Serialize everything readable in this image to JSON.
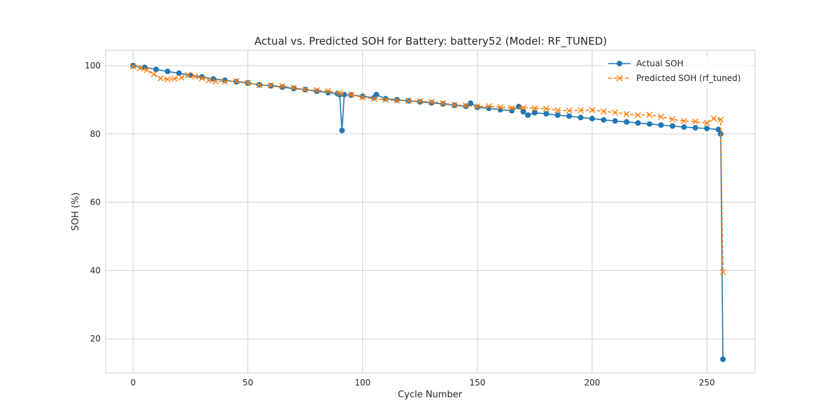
{
  "chart_data": {
    "type": "line",
    "title": "Actual vs. Predicted SOH for Battery: battery52 (Model: RF_TUNED)",
    "xlabel": "Cycle Number",
    "ylabel": "SOH (%)",
    "xlim": [
      -12,
      271
    ],
    "ylim": [
      10,
      104.5
    ],
    "xticks": [
      0,
      50,
      100,
      150,
      200,
      250
    ],
    "yticks": [
      20,
      40,
      60,
      80,
      100
    ],
    "grid": true,
    "legend_position": "top-right",
    "series": [
      {
        "name": "Actual SOH",
        "color": "#1f77b4",
        "marker": "circle",
        "linestyle": "solid",
        "x": [
          0,
          5,
          10,
          15,
          20,
          25,
          30,
          35,
          40,
          45,
          50,
          55,
          60,
          65,
          70,
          75,
          80,
          85,
          89,
          90,
          91,
          92,
          95,
          100,
          105,
          106,
          110,
          115,
          120,
          125,
          130,
          135,
          140,
          145,
          147,
          150,
          155,
          160,
          165,
          168,
          170,
          172,
          175,
          180,
          185,
          190,
          195,
          200,
          205,
          210,
          215,
          220,
          225,
          230,
          235,
          240,
          245,
          250,
          255,
          256,
          257
        ],
        "y": [
          100,
          99.5,
          98.9,
          98.3,
          97.8,
          97.2,
          96.7,
          96.1,
          95.7,
          95.3,
          94.9,
          94.4,
          94.1,
          93.7,
          93.3,
          93.0,
          92.5,
          92.1,
          91.8,
          91.5,
          81.0,
          91.5,
          91.4,
          91.0,
          90.6,
          91.5,
          90.3,
          90.0,
          89.7,
          89.4,
          89.1,
          88.8,
          88.4,
          88.1,
          89.0,
          87.8,
          87.5,
          87.1,
          86.8,
          88.0,
          86.5,
          85.5,
          86.2,
          85.9,
          85.5,
          85.2,
          84.8,
          84.5,
          84.1,
          83.8,
          83.5,
          83.2,
          82.9,
          82.6,
          82.3,
          82.0,
          81.8,
          81.6,
          81.3,
          80.0,
          14.0
        ]
      },
      {
        "name": "Predicted SOH (rf_tuned)",
        "color": "#ff7f0e",
        "marker": "x",
        "linestyle": "dashed",
        "x": [
          0,
          3,
          6,
          9,
          12,
          15,
          18,
          21,
          24,
          27,
          30,
          33,
          36,
          40,
          45,
          50,
          55,
          60,
          65,
          70,
          75,
          80,
          85,
          90,
          95,
          100,
          105,
          110,
          115,
          120,
          125,
          130,
          135,
          140,
          145,
          150,
          155,
          160,
          165,
          170,
          175,
          180,
          185,
          190,
          195,
          200,
          205,
          210,
          215,
          220,
          225,
          230,
          235,
          240,
          245,
          250,
          253,
          256,
          257
        ],
        "y": [
          99.8,
          99.2,
          98.7,
          97.5,
          96.3,
          96.0,
          96.2,
          96.5,
          97.2,
          96.8,
          96.3,
          95.7,
          95.4,
          95.3,
          95.5,
          95.0,
          94.3,
          94.2,
          94.0,
          93.5,
          93.0,
          92.8,
          92.6,
          91.9,
          91.5,
          90.7,
          90.3,
          90.0,
          89.8,
          89.7,
          89.6,
          89.4,
          89.0,
          88.5,
          88.3,
          88.0,
          88.1,
          87.8,
          87.6,
          87.7,
          87.5,
          87.4,
          86.9,
          86.8,
          86.9,
          87.0,
          86.6,
          86.3,
          85.8,
          85.5,
          85.6,
          85.0,
          84.3,
          83.8,
          83.6,
          83.2,
          84.5,
          84.2,
          39.5
        ]
      }
    ]
  }
}
